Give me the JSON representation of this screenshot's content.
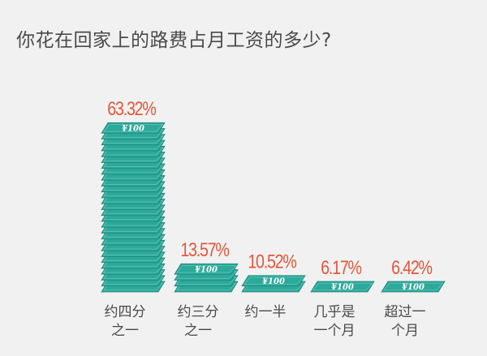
{
  "chart_data": {
    "type": "bar",
    "title": "你花在回家上的路费占月工资的多少?",
    "xlabel": "",
    "ylabel": "",
    "categories": [
      [
        "约四分",
        "之一"
      ],
      [
        "约三分",
        "之一"
      ],
      [
        "约一半"
      ],
      [
        "几乎是",
        "一个月"
      ],
      [
        "超过一",
        "个月"
      ]
    ],
    "values": [
      63.32,
      13.57,
      10.52,
      6.17,
      6.42
    ],
    "value_labels": [
      "63.32%",
      "13.57%",
      "10.52%",
      "6.17%",
      "6.42%"
    ],
    "bill_text": "¥100",
    "grid": false,
    "legend": "none",
    "colors": {
      "bill": "#2ba99a",
      "bill_dark": "#1d8679",
      "bill_text": "#ffffff",
      "value_label": "#e2573b",
      "category_label": "#4a4a4a"
    }
  }
}
